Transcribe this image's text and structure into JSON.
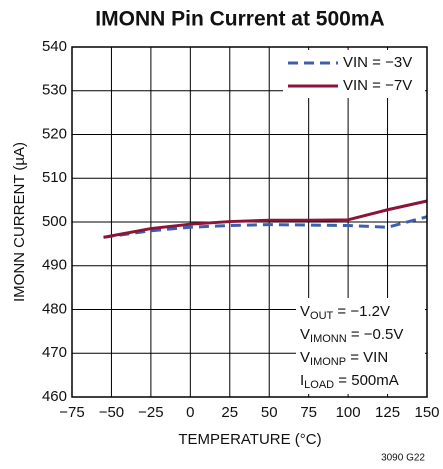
{
  "chart_data": {
    "type": "line",
    "title": "IMONN Pin Current at 500mA",
    "x_label": "TEMPERATURE (°C)",
    "y_label": "IMONN CURRENT (µA)",
    "footnote": "3090 G22",
    "x": [
      -55,
      -25,
      0,
      25,
      50,
      75,
      100,
      125,
      150
    ],
    "series": [
      {
        "name": "VIN = −3V",
        "color": "#3f5fae",
        "dash": true,
        "values": [
          496.5,
          498.0,
          498.8,
          499.2,
          499.4,
          499.3,
          499.2,
          498.8,
          501.2
        ]
      },
      {
        "name": "VIN = −7V",
        "color": "#8a1538",
        "dash": false,
        "values": [
          496.5,
          498.5,
          499.5,
          500.1,
          500.4,
          500.4,
          500.5,
          502.8,
          504.8
        ]
      }
    ],
    "annotation": [
      {
        "main": "V",
        "sub": "OUT",
        "rest": " = −1.2V"
      },
      {
        "main": "V",
        "sub": "IMONN",
        "rest": " = −0.5V"
      },
      {
        "main": "V",
        "sub": "IMONP",
        "rest": " = VIN"
      },
      {
        "main": "I",
        "sub": "LOAD",
        "rest": " = 500mA"
      }
    ],
    "xlim": [
      -75,
      150
    ],
    "xticks": [
      {
        "value": -75,
        "label": "−75"
      },
      {
        "value": -50,
        "label": "−50"
      },
      {
        "value": -25,
        "label": "−25"
      },
      0,
      25,
      50,
      75,
      100,
      125,
      150
    ],
    "ylim": [
      460,
      540
    ],
    "yticks": [
      460,
      470,
      480,
      490,
      500,
      510,
      520,
      530,
      540
    ],
    "grid": true,
    "legend": "upper right"
  }
}
